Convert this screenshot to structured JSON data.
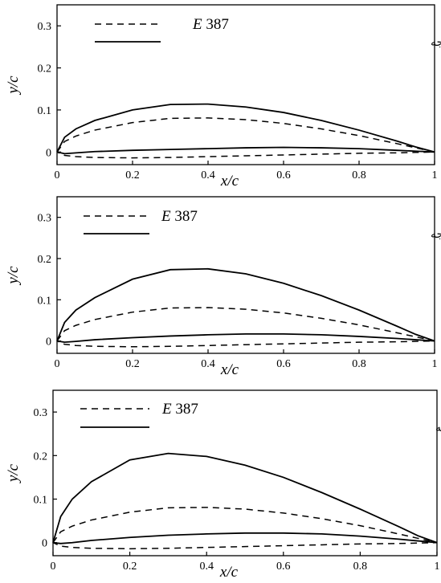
{
  "chart_data": [
    {
      "type": "line",
      "xlabel": "x/c",
      "ylabel": "y/c",
      "xlim": [
        0,
        1
      ],
      "ylim": [
        -0.03,
        0.35
      ],
      "xticks": [
        "0",
        "0.2",
        "0.4",
        "0.6",
        "0.8",
        "1"
      ],
      "yticks": [
        "0",
        "0.1",
        "0.2",
        "0.3"
      ],
      "legend_position": "top",
      "series": [
        {
          "name": "E 387",
          "style": "dashed",
          "x": [
            0.0,
            0.02,
            0.05,
            0.1,
            0.2,
            0.3,
            0.4,
            0.5,
            0.6,
            0.7,
            0.8,
            0.9,
            0.95,
            1.0,
            0.95,
            0.9,
            0.8,
            0.7,
            0.6,
            0.5,
            0.4,
            0.3,
            0.2,
            0.1,
            0.05,
            0.02,
            0.0
          ],
          "y": [
            0.0,
            0.025,
            0.038,
            0.052,
            0.07,
            0.08,
            0.081,
            0.077,
            0.068,
            0.055,
            0.039,
            0.02,
            0.01,
            0.0,
            -0.001,
            -0.002,
            -0.003,
            -0.005,
            -0.007,
            -0.009,
            -0.011,
            -0.013,
            -0.014,
            -0.013,
            -0.011,
            -0.008,
            0.0
          ]
        },
        {
          "name": "بالواره بهینه شده در زاویه حمله صفر درجه",
          "style": "solid",
          "x": [
            0.0,
            0.02,
            0.05,
            0.1,
            0.2,
            0.3,
            0.4,
            0.5,
            0.6,
            0.7,
            0.8,
            0.9,
            0.95,
            1.0,
            0.95,
            0.9,
            0.8,
            0.7,
            0.6,
            0.5,
            0.4,
            0.3,
            0.2,
            0.1,
            0.05,
            0.02,
            0.0
          ],
          "y": [
            0.0,
            0.035,
            0.055,
            0.075,
            0.1,
            0.113,
            0.114,
            0.107,
            0.094,
            0.075,
            0.052,
            0.026,
            0.012,
            0.0,
            0.002,
            0.004,
            0.008,
            0.01,
            0.011,
            0.01,
            0.008,
            0.006,
            0.004,
            0.001,
            -0.002,
            -0.004,
            0.0
          ]
        }
      ]
    },
    {
      "type": "line",
      "xlabel": "x/c",
      "ylabel": "y/c",
      "xlim": [
        0,
        1
      ],
      "ylim": [
        -0.03,
        0.35
      ],
      "xticks": [
        "0",
        "0.2",
        "0.4",
        "0.6",
        "0.8",
        "1"
      ],
      "yticks": [
        "0",
        "0.1",
        "0.2",
        "0.3"
      ],
      "legend_position": "top",
      "series": [
        {
          "name": "E 387",
          "style": "dashed",
          "x": [
            0.0,
            0.02,
            0.05,
            0.1,
            0.2,
            0.3,
            0.4,
            0.5,
            0.6,
            0.7,
            0.8,
            0.9,
            0.95,
            1.0,
            0.95,
            0.9,
            0.8,
            0.7,
            0.6,
            0.5,
            0.4,
            0.3,
            0.2,
            0.1,
            0.05,
            0.02,
            0.0
          ],
          "y": [
            0.0,
            0.025,
            0.038,
            0.052,
            0.07,
            0.08,
            0.081,
            0.077,
            0.068,
            0.055,
            0.039,
            0.02,
            0.01,
            0.0,
            -0.001,
            -0.002,
            -0.003,
            -0.005,
            -0.007,
            -0.009,
            -0.011,
            -0.013,
            -0.014,
            -0.013,
            -0.011,
            -0.008,
            0.0
          ]
        },
        {
          "name": "بالواره بهینه شده در زاویه حمله ده درجه",
          "style": "solid",
          "x": [
            0.0,
            0.02,
            0.05,
            0.1,
            0.2,
            0.3,
            0.4,
            0.5,
            0.6,
            0.7,
            0.8,
            0.9,
            0.95,
            1.0,
            0.95,
            0.9,
            0.8,
            0.7,
            0.6,
            0.5,
            0.4,
            0.3,
            0.2,
            0.1,
            0.05,
            0.02,
            0.0
          ],
          "y": [
            0.0,
            0.045,
            0.075,
            0.105,
            0.15,
            0.173,
            0.175,
            0.163,
            0.14,
            0.11,
            0.075,
            0.036,
            0.016,
            0.0,
            0.003,
            0.006,
            0.011,
            0.015,
            0.017,
            0.017,
            0.015,
            0.012,
            0.008,
            0.003,
            -0.001,
            -0.003,
            0.0
          ]
        }
      ]
    },
    {
      "type": "line",
      "xlabel": "x/c",
      "ylabel": "y/c",
      "xlim": [
        0,
        1
      ],
      "ylim": [
        -0.03,
        0.35
      ],
      "xticks": [
        "0",
        "0.2",
        "0.4",
        "0.6",
        "0.8",
        "1"
      ],
      "yticks": [
        "0",
        "0.1",
        "0.2",
        "0.3"
      ],
      "legend_position": "top",
      "series": [
        {
          "name": "E 387",
          "style": "dashed",
          "x": [
            0.0,
            0.02,
            0.05,
            0.1,
            0.2,
            0.3,
            0.4,
            0.5,
            0.6,
            0.7,
            0.8,
            0.9,
            0.95,
            1.0,
            0.95,
            0.9,
            0.8,
            0.7,
            0.6,
            0.5,
            0.4,
            0.3,
            0.2,
            0.1,
            0.05,
            0.02,
            0.0
          ],
          "y": [
            0.0,
            0.025,
            0.038,
            0.052,
            0.07,
            0.08,
            0.081,
            0.077,
            0.068,
            0.055,
            0.039,
            0.02,
            0.01,
            0.0,
            -0.001,
            -0.002,
            -0.003,
            -0.005,
            -0.007,
            -0.009,
            -0.011,
            -0.013,
            -0.014,
            -0.013,
            -0.011,
            -0.008,
            0.0
          ]
        },
        {
          "name": "بالواره بهینه شده در زاویه حمله هجده درجه",
          "style": "solid",
          "x": [
            0.0,
            0.02,
            0.05,
            0.1,
            0.2,
            0.3,
            0.4,
            0.5,
            0.6,
            0.7,
            0.8,
            0.9,
            0.95,
            1.0,
            0.95,
            0.9,
            0.8,
            0.7,
            0.6,
            0.5,
            0.4,
            0.3,
            0.2,
            0.1,
            0.05,
            0.02,
            0.0
          ],
          "y": [
            0.0,
            0.06,
            0.1,
            0.14,
            0.19,
            0.205,
            0.198,
            0.178,
            0.15,
            0.115,
            0.077,
            0.037,
            0.016,
            0.0,
            0.004,
            0.008,
            0.015,
            0.02,
            0.022,
            0.022,
            0.02,
            0.017,
            0.012,
            0.005,
            0.0,
            -0.002,
            0.0
          ]
        }
      ]
    }
  ]
}
